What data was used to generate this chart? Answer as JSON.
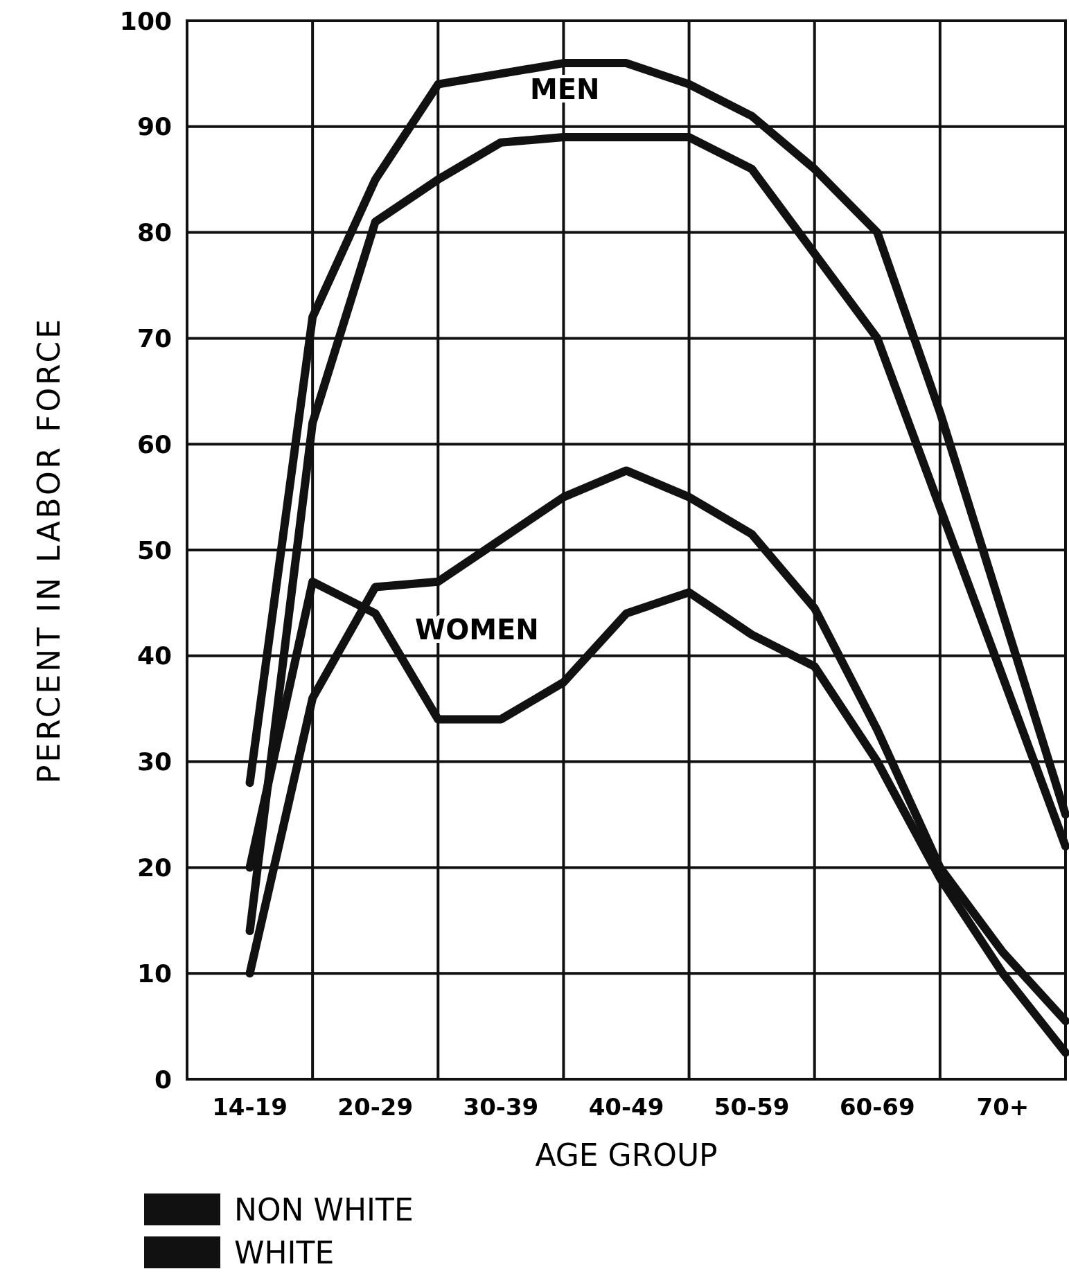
{
  "chart_data": {
    "type": "line",
    "xlabel": "AGE GROUP",
    "ylabel": "PERCENT IN LABOR FORCE",
    "categories": [
      "14-19",
      null,
      "20-29",
      null,
      "30-39",
      null,
      "40-49",
      null,
      "50-59",
      null,
      "60-69",
      null,
      "70+",
      null
    ],
    "ylim": [
      0,
      100
    ],
    "yticks": [
      0,
      10,
      20,
      30,
      40,
      50,
      60,
      70,
      80,
      90,
      100
    ],
    "grid": true,
    "legend": "bottom left",
    "line_style": "solid",
    "annotations": [
      "MEN",
      "WOMEN"
    ],
    "series": [
      {
        "name": "NON WHITE",
        "color": "#111111",
        "values": [
          14,
          62,
          81,
          85,
          88.5,
          89,
          89,
          89,
          86,
          78,
          70,
          54,
          38,
          22
        ]
      },
      {
        "name": "WHITE",
        "color": "#111111",
        "values": [
          28,
          72,
          85,
          94,
          95,
          96,
          96,
          94,
          91,
          86,
          80,
          63,
          44,
          25
        ]
      },
      {
        "color": "#111111",
        "values": [
          20,
          47,
          44,
          34,
          34,
          37.5,
          44,
          46,
          42,
          39,
          30,
          19,
          10,
          2.5
        ]
      },
      {
        "color": "#111111",
        "values": [
          10,
          36,
          46.5,
          47,
          51,
          55,
          57.5,
          55,
          51.5,
          44.5,
          33,
          20,
          12,
          5.5
        ]
      }
    ]
  }
}
